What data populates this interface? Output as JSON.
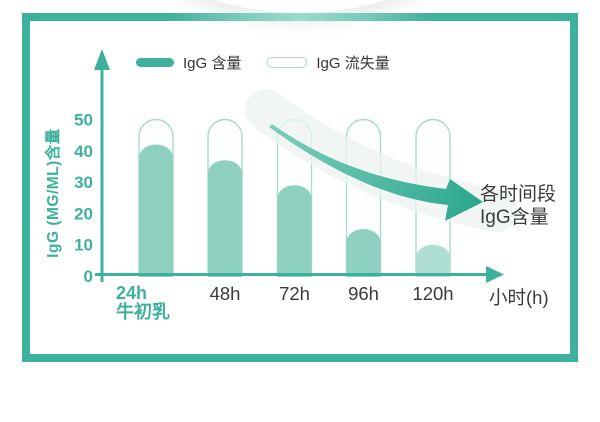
{
  "legend": {
    "items": [
      {
        "label": "IgG 含量",
        "swatch": "filled"
      },
      {
        "label": "IgG 流失量",
        "swatch": "outline"
      }
    ]
  },
  "annotation": {
    "lines": [
      "各时间段",
      "IgG含量"
    ]
  },
  "chart_data": {
    "type": "bar",
    "title": "",
    "categories": [
      "24h",
      "48h",
      "72h",
      "96h",
      "120h"
    ],
    "x_sublabel": "牛初乳",
    "series": [
      {
        "name": "IgG 含量",
        "values": [
          42,
          37,
          29,
          15,
          10
        ]
      },
      {
        "name": "IgG 流失量",
        "values": [
          8,
          13,
          21,
          35,
          40
        ]
      }
    ],
    "capacity": 50,
    "ylabel": "IgG (MG/ML)含量",
    "xlabel": "小时(h)",
    "ylim": [
      0,
      50
    ],
    "yticks": [
      0,
      10,
      20,
      30,
      40,
      50
    ],
    "grid": false,
    "legend_position": "top",
    "annotation": "各时间段 IgG含量"
  },
  "colors": {
    "accent": "#3EB19D",
    "bar_fill": "#8FD1C1",
    "bar_fill_light": "#AEDFD2",
    "pill_stroke": "#A5DACC",
    "pill_interior": "#FDFEFE",
    "text_dark": "#3B3B3B",
    "arrow_gradient_start": "#7FCFBB",
    "arrow_gradient_end": "#2CA78F",
    "highlight_band": "rgba(236,243,241,0.75)"
  }
}
